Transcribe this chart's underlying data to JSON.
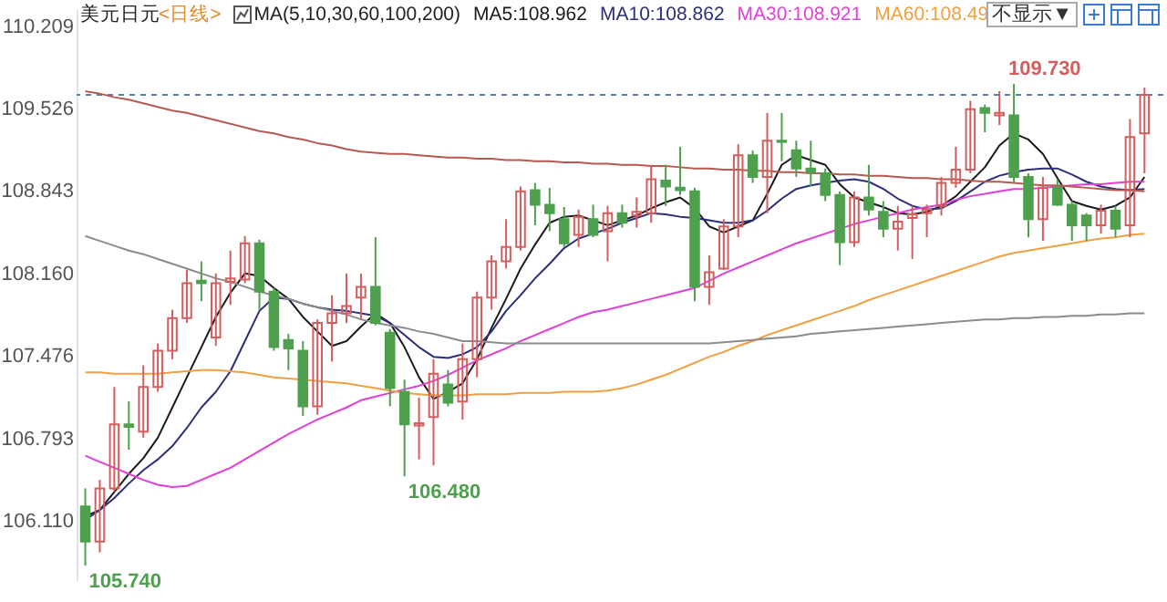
{
  "chart_data": {
    "type": "candlestick",
    "title": "美元日元",
    "subtitle": "<日线>",
    "categories": [
      null,
      null,
      null,
      null,
      null,
      null,
      null,
      null,
      null,
      null,
      null,
      null,
      null,
      null,
      null,
      null,
      null,
      null,
      null,
      null,
      null,
      null,
      null,
      null,
      null,
      null,
      null,
      null,
      null,
      null,
      null,
      null,
      null,
      null,
      null,
      null,
      null,
      null,
      null,
      null,
      null,
      null,
      null,
      null,
      null,
      null,
      null,
      null,
      null,
      null,
      null,
      null,
      null,
      null,
      null,
      null,
      null,
      null,
      null,
      null,
      null,
      null,
      null,
      null,
      null,
      null,
      null,
      null,
      null,
      null,
      null,
      null,
      null,
      null
    ],
    "ohlc": [
      [
        106.23,
        106.38,
        105.74,
        105.94
      ],
      [
        105.94,
        106.45,
        105.85,
        106.38
      ],
      [
        106.38,
        107.22,
        106.35,
        106.91
      ],
      [
        106.91,
        107.1,
        106.7,
        106.89
      ],
      [
        106.85,
        107.4,
        106.8,
        107.22
      ],
      [
        107.22,
        107.58,
        107.18,
        107.52
      ],
      [
        107.52,
        107.86,
        107.45,
        107.79
      ],
      [
        107.79,
        108.19,
        107.75,
        108.08
      ],
      [
        108.1,
        108.26,
        107.93,
        108.08
      ],
      [
        107.63,
        108.16,
        107.56,
        108.08
      ],
      [
        108.09,
        108.35,
        107.9,
        108.12
      ],
      [
        108.11,
        108.47,
        108.08,
        108.41
      ],
      [
        108.41,
        108.44,
        107.86,
        108.01
      ],
      [
        108.01,
        108.04,
        107.52,
        107.55
      ],
      [
        107.61,
        107.66,
        107.36,
        107.54
      ],
      [
        107.52,
        107.6,
        106.98,
        107.06
      ],
      [
        107.06,
        107.78,
        106.99,
        107.75
      ],
      [
        107.75,
        107.98,
        107.43,
        107.83
      ],
      [
        107.83,
        108.16,
        107.75,
        107.89
      ],
      [
        107.96,
        108.16,
        107.78,
        108.05
      ],
      [
        108.05,
        108.46,
        107.73,
        107.75
      ],
      [
        107.67,
        107.7,
        107.06,
        107.21
      ],
      [
        107.18,
        107.28,
        106.48,
        106.91
      ],
      [
        106.9,
        107.13,
        106.62,
        106.92
      ],
      [
        106.97,
        107.45,
        106.57,
        107.33
      ],
      [
        107.24,
        107.36,
        107.06,
        107.09
      ],
      [
        107.1,
        107.58,
        106.95,
        107.45
      ],
      [
        107.45,
        108.01,
        107.3,
        107.96
      ],
      [
        107.96,
        108.31,
        107.86,
        108.26
      ],
      [
        108.26,
        108.61,
        108.2,
        108.38
      ],
      [
        108.38,
        108.88,
        108.35,
        108.84
      ],
      [
        108.85,
        108.91,
        108.56,
        108.73
      ],
      [
        108.73,
        108.87,
        108.51,
        108.66
      ],
      [
        108.61,
        108.71,
        108.38,
        108.41
      ],
      [
        108.48,
        108.69,
        108.38,
        108.63
      ],
      [
        108.61,
        108.73,
        108.46,
        108.48
      ],
      [
        108.51,
        108.72,
        108.26,
        108.66
      ],
      [
        108.66,
        108.73,
        108.54,
        108.58
      ],
      [
        108.64,
        108.79,
        108.54,
        108.67
      ],
      [
        108.66,
        109.06,
        108.58,
        108.94
      ],
      [
        108.93,
        109.06,
        108.72,
        108.88
      ],
      [
        108.87,
        109.21,
        108.81,
        108.85
      ],
      [
        108.84,
        108.87,
        107.93,
        108.05
      ],
      [
        108.05,
        108.31,
        107.9,
        108.17
      ],
      [
        108.2,
        108.61,
        108.19,
        108.55
      ],
      [
        108.55,
        109.23,
        108.46,
        109.14
      ],
      [
        109.14,
        109.18,
        108.91,
        108.96
      ],
      [
        108.96,
        109.49,
        108.66,
        109.26
      ],
      [
        109.26,
        109.49,
        109.09,
        109.25
      ],
      [
        109.18,
        109.26,
        108.96,
        109.03
      ],
      [
        109.03,
        109.26,
        108.88,
        109.0
      ],
      [
        108.99,
        109.03,
        108.76,
        108.81
      ],
      [
        108.81,
        108.84,
        108.23,
        108.42
      ],
      [
        108.42,
        108.84,
        108.38,
        108.79
      ],
      [
        108.79,
        109.06,
        108.64,
        108.69
      ],
      [
        108.67,
        108.76,
        108.46,
        108.53
      ],
      [
        108.53,
        108.72,
        108.35,
        108.59
      ],
      [
        108.62,
        108.72,
        108.28,
        108.65
      ],
      [
        108.66,
        108.73,
        108.46,
        108.69
      ],
      [
        108.72,
        108.96,
        108.64,
        108.91
      ],
      [
        108.91,
        109.21,
        108.87,
        109.02
      ],
      [
        109.02,
        109.59,
        108.99,
        109.52
      ],
      [
        109.53,
        109.56,
        109.33,
        109.49
      ],
      [
        109.47,
        109.67,
        109.39,
        109.49
      ],
      [
        109.47,
        109.73,
        108.91,
        108.96
      ],
      [
        108.96,
        108.99,
        108.46,
        108.61
      ],
      [
        108.61,
        108.96,
        108.43,
        108.87
      ],
      [
        108.87,
        108.94,
        108.72,
        108.73
      ],
      [
        108.73,
        108.76,
        108.43,
        108.56
      ],
      [
        108.64,
        108.66,
        108.43,
        108.56
      ],
      [
        108.56,
        108.73,
        108.49,
        108.68
      ],
      [
        108.68,
        108.72,
        108.46,
        108.53
      ],
      [
        108.56,
        109.44,
        108.46,
        109.29
      ],
      [
        109.32,
        109.7,
        108.99,
        109.64
      ]
    ],
    "colors": [
      "#4ea04e",
      "#d45d5d",
      "#d45d5d",
      "#4ea04e",
      "#d45d5d",
      "#d45d5d",
      "#d45d5d",
      "#d45d5d",
      "#4ea04e",
      "#d45d5d",
      "#d45d5d",
      "#d45d5d",
      "#4ea04e",
      "#4ea04e",
      "#4ea04e",
      "#4ea04e",
      "#d45d5d",
      "#d45d5d",
      "#d45d5d",
      "#d45d5d",
      "#4ea04e",
      "#4ea04e",
      "#4ea04e",
      "#d45d5d",
      "#d45d5d",
      "#4ea04e",
      "#d45d5d",
      "#d45d5d",
      "#d45d5d",
      "#d45d5d",
      "#d45d5d",
      "#4ea04e",
      "#4ea04e",
      "#4ea04e",
      "#d45d5d",
      "#4ea04e",
      "#d45d5d",
      "#4ea04e",
      "#d45d5d",
      "#d45d5d",
      "#4ea04e",
      "#4ea04e",
      "#4ea04e",
      "#d45d5d",
      "#d45d5d",
      "#d45d5d",
      "#4ea04e",
      "#d45d5d",
      "#4ea04e",
      "#4ea04e",
      "#4ea04e",
      "#4ea04e",
      "#4ea04e",
      "#d45d5d",
      "#4ea04e",
      "#4ea04e",
      "#d45d5d",
      "#d45d5d",
      "#d45d5d",
      "#d45d5d",
      "#d45d5d",
      "#d45d5d",
      "#4ea04e",
      "#d45d5d",
      "#4ea04e",
      "#4ea04e",
      "#d45d5d",
      "#4ea04e",
      "#4ea04e",
      "#4ea04e",
      "#d45d5d",
      "#4ea04e",
      "#d45d5d",
      "#d45d5d"
    ],
    "series": [
      {
        "type": "line",
        "name": "MA5:108.962",
        "color": "#1a1a1a",
        "values": [
          106.15,
          106.2,
          106.35,
          106.5,
          106.63,
          106.8,
          107.05,
          107.3,
          107.55,
          107.8,
          108.0,
          108.16,
          108.14,
          108.04,
          107.95,
          107.8,
          107.68,
          107.56,
          107.6,
          107.72,
          107.83,
          107.75,
          107.55,
          107.3,
          107.12,
          107.18,
          107.25,
          107.45,
          107.71,
          107.95,
          108.2,
          108.4,
          108.58,
          108.63,
          108.64,
          108.6,
          108.56,
          108.6,
          108.64,
          108.7,
          108.75,
          108.79,
          108.7,
          108.55,
          108.5,
          108.55,
          108.6,
          108.82,
          109.06,
          109.14,
          109.1,
          109.06,
          108.9,
          108.79,
          108.75,
          108.71,
          108.66,
          108.65,
          108.67,
          108.72,
          108.8,
          108.92,
          109.04,
          109.22,
          109.32,
          109.27,
          109.15,
          108.95,
          108.76,
          108.72,
          108.69,
          108.72,
          108.79,
          108.96
        ]
      },
      {
        "type": "line",
        "name": "MA10:108.862",
        "color": "#2b2f7a",
        "values": [
          106.12,
          106.2,
          106.3,
          106.42,
          106.53,
          106.62,
          106.73,
          106.88,
          107.05,
          107.18,
          107.35,
          107.6,
          107.85,
          107.96,
          107.95,
          107.91,
          107.88,
          107.86,
          107.85,
          107.83,
          107.81,
          107.75,
          107.65,
          107.55,
          107.47,
          107.46,
          107.49,
          107.55,
          107.68,
          107.85,
          107.98,
          108.12,
          108.24,
          108.37,
          108.45,
          108.49,
          108.53,
          108.58,
          108.62,
          108.66,
          108.65,
          108.63,
          108.62,
          108.6,
          108.58,
          108.58,
          108.6,
          108.68,
          108.78,
          108.86,
          108.89,
          108.91,
          108.93,
          108.94,
          108.92,
          108.86,
          108.78,
          108.72,
          108.69,
          108.7,
          108.76,
          108.84,
          108.92,
          108.97,
          109.0,
          109.02,
          109.03,
          109.03,
          108.98,
          108.92,
          108.88,
          108.86,
          108.85,
          108.86
        ]
      },
      {
        "type": "line",
        "name": "MA30:108.921",
        "color": "#e03fd8",
        "values": [
          106.65,
          106.6,
          106.55,
          106.5,
          106.45,
          106.41,
          106.39,
          106.4,
          106.45,
          106.5,
          106.55,
          106.62,
          106.69,
          106.76,
          106.83,
          106.89,
          106.95,
          107.0,
          107.05,
          107.11,
          107.14,
          107.17,
          107.2,
          107.23,
          107.27,
          107.32,
          107.38,
          107.44,
          107.49,
          107.54,
          107.6,
          107.65,
          107.7,
          107.75,
          107.8,
          107.84,
          107.86,
          107.89,
          107.92,
          107.95,
          107.98,
          108.01,
          108.04,
          108.1,
          108.16,
          108.21,
          108.26,
          108.31,
          108.36,
          108.41,
          108.45,
          108.49,
          108.53,
          108.57,
          108.6,
          108.63,
          108.66,
          108.69,
          108.71,
          108.73,
          108.77,
          108.8,
          108.82,
          108.84,
          108.86,
          108.86,
          108.87,
          108.88,
          108.89,
          108.9,
          108.9,
          108.91,
          108.92,
          108.92
        ]
      },
      {
        "type": "line",
        "name": "MA60:108.49",
        "color": "#f0a040",
        "values": [
          107.34,
          107.34,
          107.33,
          107.33,
          107.33,
          107.33,
          107.34,
          107.35,
          107.36,
          107.36,
          107.35,
          107.34,
          107.32,
          107.3,
          107.29,
          107.28,
          107.27,
          107.26,
          107.25,
          107.23,
          107.21,
          107.19,
          107.17,
          107.16,
          107.15,
          107.15,
          107.15,
          107.16,
          107.16,
          107.16,
          107.17,
          107.17,
          107.17,
          107.18,
          107.18,
          107.18,
          107.19,
          107.21,
          107.24,
          107.28,
          107.32,
          107.37,
          107.42,
          107.47,
          107.51,
          107.56,
          107.6,
          107.65,
          107.69,
          107.73,
          107.77,
          107.81,
          107.85,
          107.89,
          107.94,
          107.98,
          108.02,
          108.06,
          108.1,
          108.14,
          108.18,
          108.22,
          108.26,
          108.3,
          108.33,
          108.35,
          108.37,
          108.39,
          108.41,
          108.43,
          108.45,
          108.46,
          108.48,
          108.49
        ]
      },
      {
        "type": "line",
        "color": "#b85a50",
        "values": [
          109.67,
          109.65,
          109.62,
          109.6,
          109.57,
          109.54,
          109.51,
          109.49,
          109.46,
          109.43,
          109.4,
          109.37,
          109.34,
          109.32,
          109.29,
          109.27,
          109.24,
          109.22,
          109.19,
          109.17,
          109.16,
          109.15,
          109.15,
          109.14,
          109.13,
          109.12,
          109.12,
          109.11,
          109.11,
          109.1,
          109.1,
          109.09,
          109.09,
          109.08,
          109.08,
          109.07,
          109.07,
          109.06,
          109.06,
          109.05,
          109.05,
          109.04,
          109.03,
          109.03,
          109.02,
          109.02,
          109.01,
          109.01,
          109.0,
          109.0,
          108.99,
          108.99,
          108.98,
          108.98,
          108.97,
          108.97,
          108.96,
          108.95,
          108.95,
          108.94,
          108.94,
          108.93,
          108.92,
          108.92,
          108.91,
          108.9,
          108.89,
          108.89,
          108.88,
          108.87,
          108.86,
          108.85,
          108.85,
          108.84
        ]
      },
      {
        "type": "line",
        "color": "#8c8c8c",
        "values": [
          108.47,
          108.43,
          108.39,
          108.35,
          108.32,
          108.28,
          108.24,
          108.2,
          108.16,
          108.12,
          108.09,
          108.05,
          108.01,
          107.98,
          107.95,
          107.91,
          107.88,
          107.85,
          107.82,
          107.78,
          107.75,
          107.73,
          107.71,
          107.68,
          107.66,
          107.63,
          107.6,
          107.6,
          107.59,
          107.58,
          107.58,
          107.58,
          107.58,
          107.58,
          107.58,
          107.58,
          107.58,
          107.58,
          107.58,
          107.58,
          107.58,
          107.58,
          107.58,
          107.58,
          107.59,
          107.6,
          107.61,
          107.62,
          107.63,
          107.64,
          107.66,
          107.67,
          107.68,
          107.69,
          107.7,
          107.71,
          107.72,
          107.73,
          107.74,
          107.75,
          107.76,
          107.77,
          107.78,
          107.78,
          107.79,
          107.79,
          107.8,
          107.8,
          107.81,
          107.81,
          107.82,
          107.82,
          107.83,
          107.83
        ]
      }
    ],
    "ylim": [
      105.62,
      110.35
    ],
    "yticks": [
      {
        "value": 106.11,
        "label": "106.110"
      },
      106.793,
      107.476,
      {
        "value": 108.16,
        "label": "108.160"
      },
      108.843,
      109.526,
      110.209
    ],
    "tick_labels": "y",
    "ref_lines": [
      {
        "axis": "y",
        "value": 109.64,
        "color": "#5a7fa8",
        "line_style": "dashed"
      }
    ],
    "annotations": [
      "MA(5,10,30,60,100,200)",
      "不显示▼",
      "109.730",
      "106.480",
      "105.740"
    ],
    "legend": "top"
  }
}
